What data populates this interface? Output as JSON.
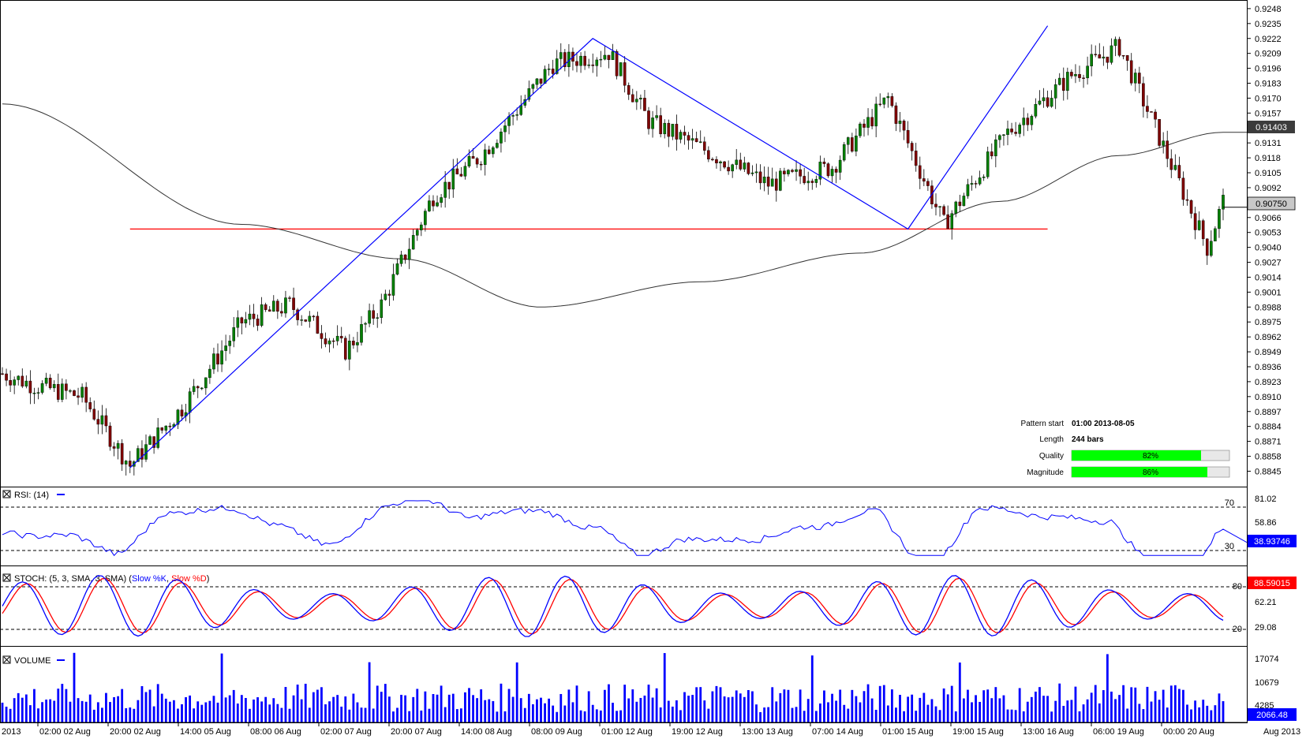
{
  "chart_data": {
    "type": "candlestick",
    "main": {
      "y_ticks": [
        "0.9248",
        "0.9235",
        "0.9222",
        "0.9209",
        "0.9196",
        "0.9183",
        "0.9170",
        "0.9157",
        "0.9131",
        "0.9118",
        "0.9105",
        "0.9092",
        "0.9066",
        "0.9053",
        "0.9040",
        "0.9027",
        "0.9014",
        "0.9001",
        "0.8988",
        "0.8975",
        "0.8962",
        "0.8949",
        "0.8936",
        "0.8923",
        "0.8910",
        "0.8897",
        "0.8884",
        "0.8871",
        "0.8858",
        "0.8845"
      ],
      "ylim": [
        0.8835,
        0.925
      ],
      "ma_label": "0.91403",
      "ma_value": 0.91403,
      "price_label": "0.90750",
      "price_value": 0.9075,
      "support_level": 0.9056,
      "pattern_points": [
        [
          0.8848,
          0
        ],
        [
          0.9222,
          81
        ],
        [
          0.9056,
          132
        ],
        [
          0.9233,
          152
        ]
      ],
      "pattern_info": {
        "start_label": "Pattern start",
        "start_value": "01:00 2013-08-05",
        "length_label": "Length",
        "length_value": "244 bars",
        "quality_label": "Quality",
        "quality_value": "82%",
        "quality_pct": 82,
        "magnitude_label": "Magnitude",
        "magnitude_value": "86%",
        "magnitude_pct": 86
      }
    },
    "rsi": {
      "title": "RSI: (14)",
      "y_ticks": [
        "81.02",
        "58.86"
      ],
      "levels": [
        "70",
        "30"
      ],
      "value_label": "38.93746",
      "ylim": [
        20,
        90
      ]
    },
    "stoch": {
      "title": "STOCH: (5, 3, SMA, 3, SMA)",
      "k_label": "Slow %K",
      "d_label": "Slow %D",
      "y_ticks": [
        "62.21",
        "29.08"
      ],
      "levels": [
        "80",
        "20"
      ],
      "value_label": "88.59015",
      "ylim": [
        0,
        100
      ]
    },
    "volume": {
      "title": "VOLUME",
      "y_ticks": [
        "17074",
        "10679",
        "4285"
      ],
      "value_label": "2066.48",
      "ymax": 17500
    },
    "x_labels": [
      "2013",
      "02:00 02 Aug",
      "20:00 02 Aug",
      "14:00 05 Aug",
      "08:00 06 Aug",
      "02:00 07 Aug",
      "20:00 07 Aug",
      "14:00 08 Aug",
      "08:00 09 Aug",
      "01:00 12 Aug",
      "19:00 12 Aug",
      "13:00 13 Aug",
      "07:00 14 Aug",
      "01:00 15 Aug",
      "19:00 15 Aug",
      "13:00 16 Aug",
      "06:00 19 Aug",
      "00:00 20 Aug",
      "Aug 2013"
    ],
    "colors": {
      "up": "#008000",
      "down": "#800000",
      "rsi": "#0000ff",
      "k": "#0000ff",
      "d": "#ff0000",
      "volume": "#0000ff",
      "ma": "#333333",
      "pattern": "#0000ff",
      "support": "#ff0000"
    }
  }
}
